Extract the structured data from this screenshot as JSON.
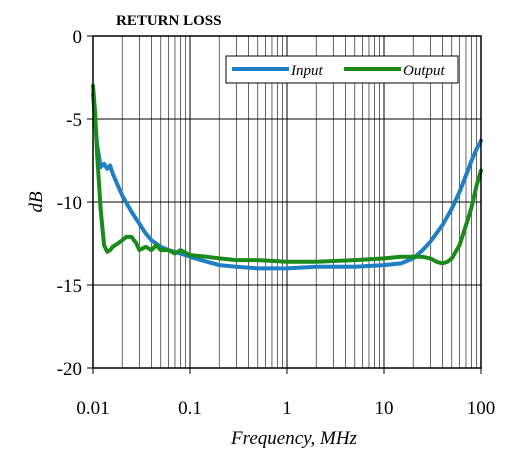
{
  "chart_data": {
    "type": "line",
    "title": "RETURN LOSS",
    "xlabel": "Frequency, MHz",
    "ylabel": "dB",
    "x_scale": "log",
    "xlim": [
      0.01,
      100
    ],
    "ylim": [
      -20,
      0
    ],
    "x_ticks": [
      {
        "value": 0.01,
        "label": "0.01"
      },
      {
        "value": 0.1,
        "label": "0.1"
      },
      {
        "value": 1,
        "label": "1"
      },
      {
        "value": 10,
        "label": "10"
      },
      {
        "value": 100,
        "label": "100"
      }
    ],
    "y_ticks": [
      {
        "value": 0,
        "label": "0"
      },
      {
        "value": -5,
        "label": "-5"
      },
      {
        "value": -10,
        "label": "-10"
      },
      {
        "value": -15,
        "label": "-15"
      },
      {
        "value": -20,
        "label": "-20"
      }
    ],
    "grid": true,
    "legend_position": "top-right",
    "series": [
      {
        "name": "Input",
        "color": "#1f7fc4",
        "x": [
          0.01,
          0.011,
          0.012,
          0.013,
          0.014,
          0.015,
          0.016,
          0.018,
          0.02,
          0.025,
          0.03,
          0.035,
          0.04,
          0.05,
          0.06,
          0.08,
          0.1,
          0.15,
          0.2,
          0.3,
          0.5,
          1,
          2,
          5,
          10,
          15,
          20,
          25,
          30,
          40,
          50,
          60,
          70,
          80,
          90,
          100
        ],
        "y": [
          -3.5,
          -6.5,
          -7.9,
          -7.7,
          -8.0,
          -7.8,
          -8.3,
          -9.0,
          -9.6,
          -10.6,
          -11.3,
          -11.9,
          -12.3,
          -12.7,
          -12.9,
          -13.1,
          -13.3,
          -13.6,
          -13.8,
          -13.9,
          -14.0,
          -14.0,
          -13.9,
          -13.9,
          -13.8,
          -13.7,
          -13.4,
          -12.9,
          -12.4,
          -11.4,
          -10.4,
          -9.4,
          -8.4,
          -7.5,
          -6.8,
          -6.3
        ]
      },
      {
        "name": "Output",
        "color": "#1a8a1a",
        "x": [
          0.01,
          0.0105,
          0.011,
          0.012,
          0.013,
          0.014,
          0.015,
          0.016,
          0.018,
          0.02,
          0.022,
          0.025,
          0.028,
          0.03,
          0.035,
          0.04,
          0.045,
          0.05,
          0.06,
          0.07,
          0.08,
          0.1,
          0.15,
          0.2,
          0.3,
          0.5,
          1,
          2,
          5,
          10,
          15,
          20,
          25,
          30,
          35,
          40,
          45,
          50,
          60,
          70,
          80,
          90,
          100
        ],
        "y": [
          -3.0,
          -4.6,
          -7.0,
          -10.5,
          -12.6,
          -13.0,
          -12.9,
          -12.7,
          -12.5,
          -12.3,
          -12.1,
          -12.1,
          -12.5,
          -12.9,
          -12.7,
          -12.9,
          -12.6,
          -12.9,
          -12.9,
          -13.1,
          -12.9,
          -13.2,
          -13.3,
          -13.4,
          -13.5,
          -13.5,
          -13.6,
          -13.6,
          -13.5,
          -13.4,
          -13.3,
          -13.3,
          -13.3,
          -13.4,
          -13.6,
          -13.7,
          -13.6,
          -13.4,
          -12.6,
          -11.4,
          -10.3,
          -9.0,
          -8.1
        ]
      }
    ]
  }
}
